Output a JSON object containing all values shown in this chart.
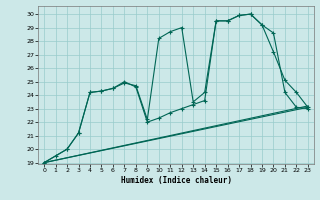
{
  "xlabel": "Humidex (Indice chaleur)",
  "xlim": [
    -0.5,
    23.5
  ],
  "ylim": [
    18.9,
    30.6
  ],
  "yticks": [
    19,
    20,
    21,
    22,
    23,
    24,
    25,
    26,
    27,
    28,
    29,
    30
  ],
  "xticks": [
    0,
    1,
    2,
    3,
    4,
    5,
    6,
    7,
    8,
    9,
    10,
    11,
    12,
    13,
    14,
    15,
    16,
    17,
    18,
    19,
    20,
    21,
    22,
    23
  ],
  "bg_color": "#cce8e8",
  "grid_color": "#99cccc",
  "line_color": "#006655",
  "line1_x": [
    0,
    1,
    2,
    3,
    4,
    5,
    6,
    7,
    8,
    9,
    10,
    11,
    12,
    13,
    14,
    15,
    16,
    17,
    18,
    19,
    20,
    21,
    22,
    23
  ],
  "line1_y": [
    19,
    19.5,
    20,
    21.2,
    24.2,
    24.3,
    24.5,
    24.9,
    24.7,
    22.2,
    28.2,
    28.7,
    29.0,
    23.5,
    24.2,
    29.5,
    29.5,
    29.9,
    30.0,
    29.2,
    28.6,
    24.2,
    23.1,
    23.0
  ],
  "line2_x": [
    0,
    2,
    3,
    4,
    5,
    6,
    7,
    8,
    9,
    10,
    11,
    12,
    13,
    14,
    15,
    16,
    17,
    18,
    19,
    20,
    21,
    22,
    23
  ],
  "line2_y": [
    19,
    20,
    21.2,
    24.2,
    24.3,
    24.5,
    25.0,
    24.6,
    22.0,
    22.3,
    22.7,
    23.0,
    23.3,
    23.6,
    29.5,
    29.5,
    29.9,
    30.0,
    29.2,
    27.2,
    25.1,
    24.2,
    23.1
  ],
  "line3_x": [
    0,
    23
  ],
  "line3_y": [
    19,
    23.1
  ],
  "line4_x": [
    0,
    23
  ],
  "line4_y": [
    19,
    23.2
  ]
}
